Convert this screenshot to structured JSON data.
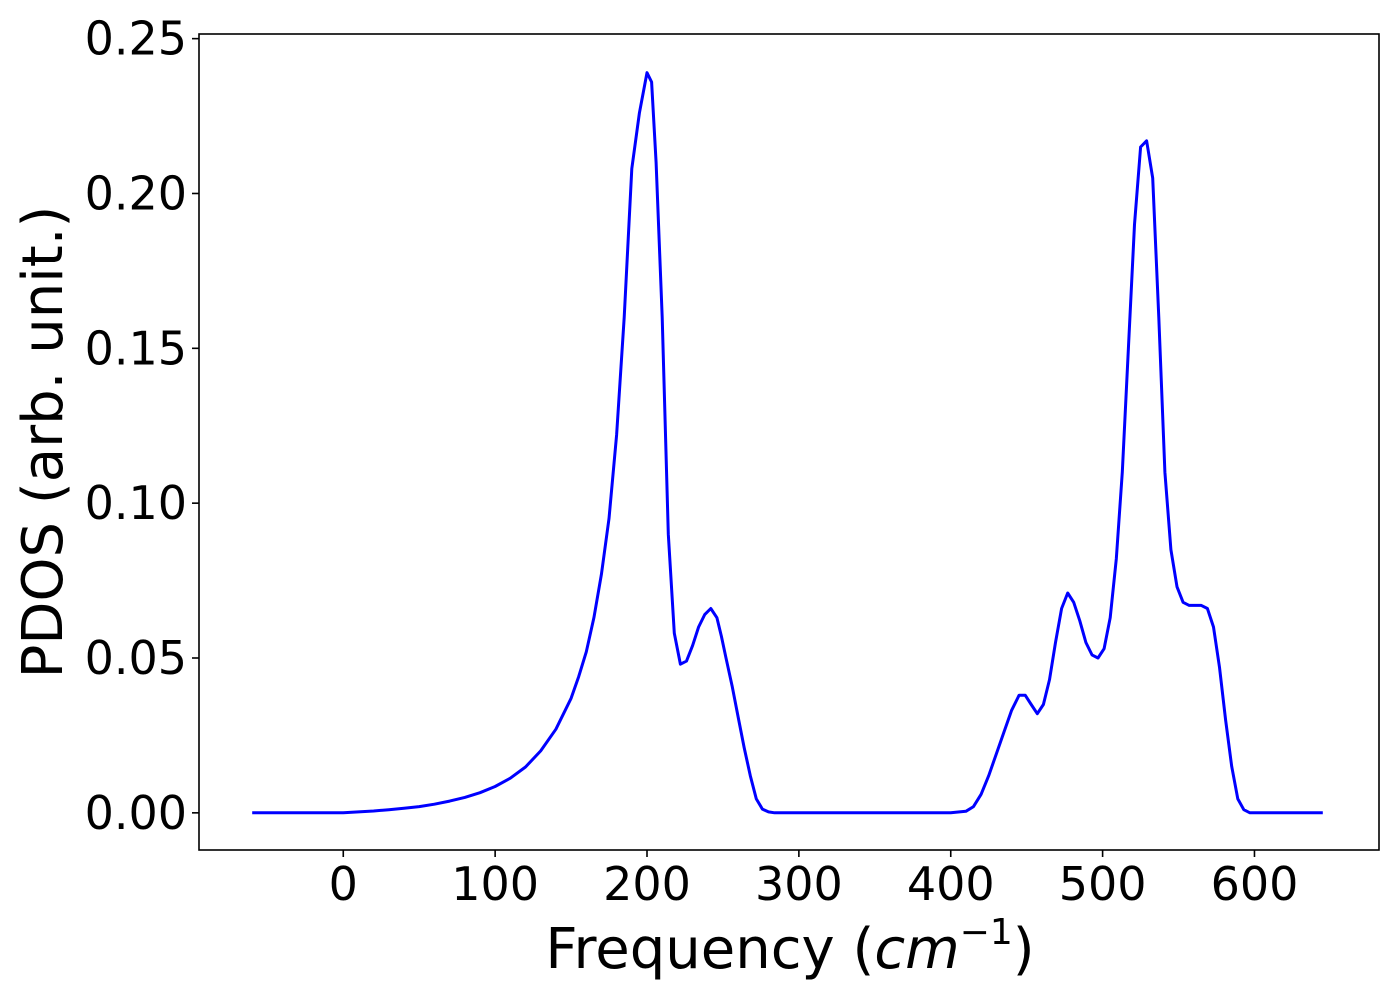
{
  "chart_data": {
    "type": "line",
    "title": "",
    "xlabel": "Frequency (",
    "xlabel_math": "cm",
    "xlabel_sup": "−1",
    "xlabel_close": ")",
    "ylabel": "PDOS (arb. unit.)",
    "xlim": [
      -95,
      682
    ],
    "ylim": [
      -0.012,
      0.2515
    ],
    "xticks": [
      0,
      100,
      200,
      300,
      400,
      500,
      600
    ],
    "xtick_labels": [
      "0",
      "100",
      "200",
      "300",
      "400",
      "500",
      "600"
    ],
    "yticks": [
      0.0,
      0.05,
      0.1,
      0.15,
      0.2,
      0.25
    ],
    "ytick_labels": [
      "0.00",
      "0.05",
      "0.10",
      "0.15",
      "0.20",
      "0.25"
    ],
    "grid": false,
    "legend": "none",
    "series": [
      {
        "color": "#0000ff",
        "x": [
          -60,
          -30,
          0,
          10,
          20,
          30,
          40,
          50,
          60,
          70,
          80,
          90,
          100,
          110,
          120,
          130,
          140,
          150,
          155,
          160,
          165,
          170,
          175,
          180,
          185,
          190,
          195,
          200,
          203,
          206,
          210,
          214,
          218,
          222,
          226,
          230,
          234,
          238,
          242,
          246,
          249,
          252,
          256,
          260,
          264,
          268,
          272,
          276,
          280,
          284,
          288,
          292,
          300,
          320,
          360,
          400,
          410,
          415,
          420,
          425,
          430,
          435,
          440,
          445,
          449,
          453,
          457,
          461,
          465,
          469,
          473,
          477,
          481,
          485,
          489,
          493,
          497,
          501,
          505,
          509,
          513,
          517,
          521,
          525,
          529,
          533,
          537,
          541,
          545,
          549,
          553,
          557,
          561,
          565,
          569,
          573,
          577,
          581,
          585,
          589,
          593,
          597,
          601,
          605,
          620,
          645
        ],
        "y": [
          0.0,
          0.0,
          0.0,
          0.0003,
          0.0006,
          0.001,
          0.0015,
          0.002,
          0.0028,
          0.0038,
          0.005,
          0.0065,
          0.0085,
          0.0112,
          0.0148,
          0.02,
          0.027,
          0.037,
          0.044,
          0.052,
          0.063,
          0.077,
          0.095,
          0.122,
          0.16,
          0.208,
          0.226,
          0.239,
          0.236,
          0.21,
          0.16,
          0.09,
          0.058,
          0.048,
          0.049,
          0.054,
          0.06,
          0.064,
          0.066,
          0.063,
          0.057,
          0.05,
          0.041,
          0.031,
          0.021,
          0.012,
          0.0045,
          0.0012,
          0.0003,
          0.0,
          0.0,
          0.0,
          0.0,
          0.0,
          0.0,
          0.0,
          0.0005,
          0.002,
          0.006,
          0.012,
          0.019,
          0.026,
          0.033,
          0.038,
          0.038,
          0.035,
          0.032,
          0.035,
          0.043,
          0.055,
          0.066,
          0.071,
          0.068,
          0.062,
          0.055,
          0.051,
          0.05,
          0.053,
          0.063,
          0.082,
          0.11,
          0.15,
          0.19,
          0.215,
          0.217,
          0.205,
          0.16,
          0.11,
          0.085,
          0.073,
          0.068,
          0.067,
          0.067,
          0.067,
          0.066,
          0.06,
          0.047,
          0.03,
          0.015,
          0.0045,
          0.001,
          0.0,
          0.0,
          0.0,
          0.0,
          0.0
        ]
      }
    ]
  }
}
